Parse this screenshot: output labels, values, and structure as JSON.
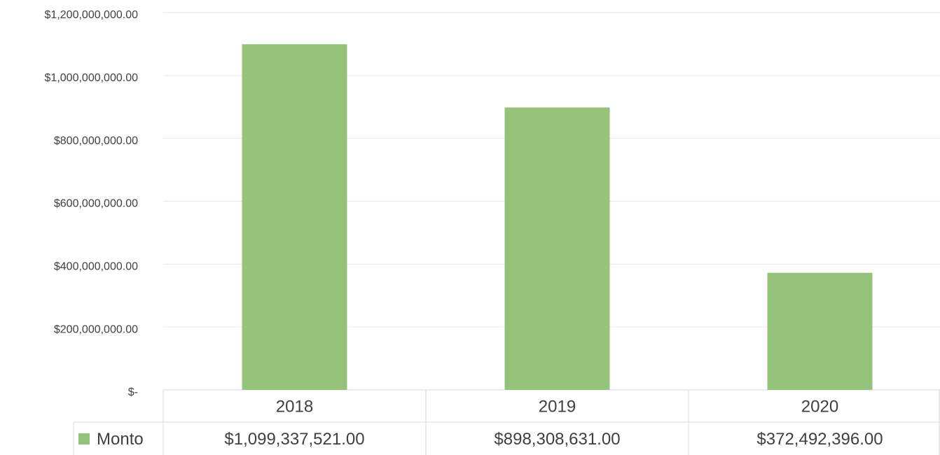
{
  "chart_data": {
    "type": "bar",
    "categories": [
      "2018",
      "2019",
      "2020"
    ],
    "series": [
      {
        "name": "Monto",
        "color": "#95c37a",
        "values": [
          1099337521,
          898308631,
          372492396
        ],
        "value_labels": [
          "$1,099,337,521.00",
          "$898,308,631.00",
          "$372,492,396.00"
        ]
      }
    ],
    "ylim": [
      0,
      1200000000
    ],
    "yticks": [
      {
        "value": 0,
        "label": "$-"
      },
      {
        "value": 200000000,
        "label": "$200,000,000.00"
      },
      {
        "value": 400000000,
        "label": "$400,000,000.00"
      },
      {
        "value": 600000000,
        "label": "$600,000,000.00"
      },
      {
        "value": 800000000,
        "label": "$800,000,000.00"
      },
      {
        "value": 1000000000,
        "label": "$1,000,000,000.00"
      },
      {
        "value": 1200000000,
        "label": "$1,200,000,000.00"
      }
    ],
    "grid": true
  }
}
